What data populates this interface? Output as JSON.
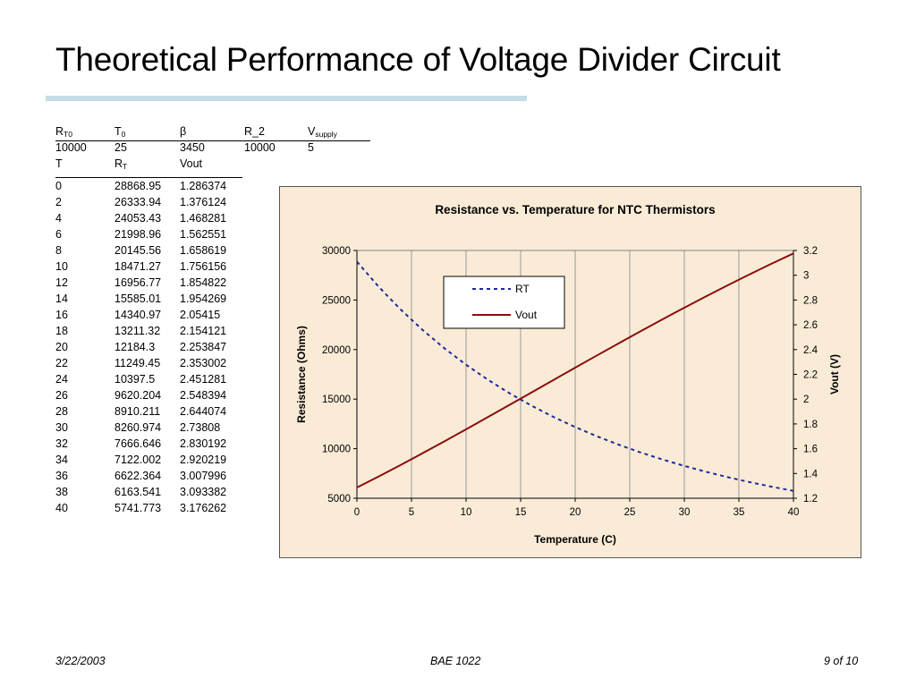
{
  "slide": {
    "title": "Theoretical Performance of Voltage Divider Circuit"
  },
  "params": {
    "headers": [
      {
        "main": "R",
        "sub": "T0"
      },
      {
        "main": "T",
        "sub": "0"
      },
      {
        "main": "β",
        "sub": ""
      },
      {
        "main": "R_2",
        "sub": ""
      },
      {
        "main": "V",
        "sub": "supply"
      }
    ],
    "values": [
      "10000",
      "25",
      "3450",
      "10000",
      "5"
    ]
  },
  "data_table": {
    "headers": [
      {
        "main": "T",
        "sub": ""
      },
      {
        "main": "R",
        "sub": "T"
      },
      {
        "main": "Vout",
        "sub": ""
      }
    ],
    "rows": [
      [
        "0",
        "28868.95",
        "1.286374"
      ],
      [
        "2",
        "26333.94",
        "1.376124"
      ],
      [
        "4",
        "24053.43",
        "1.468281"
      ],
      [
        "6",
        "21998.96",
        "1.562551"
      ],
      [
        "8",
        "20145.56",
        "1.658619"
      ],
      [
        "10",
        "18471.27",
        "1.756156"
      ],
      [
        "12",
        "16956.77",
        "1.854822"
      ],
      [
        "14",
        "15585.01",
        "1.954269"
      ],
      [
        "16",
        "14340.97",
        "2.05415"
      ],
      [
        "18",
        "13211.32",
        "2.154121"
      ],
      [
        "20",
        "12184.3",
        "2.253847"
      ],
      [
        "22",
        "11249.45",
        "2.353002"
      ],
      [
        "24",
        "10397.5",
        "2.451281"
      ],
      [
        "26",
        "9620.204",
        "2.548394"
      ],
      [
        "28",
        "8910.211",
        "2.644074"
      ],
      [
        "30",
        "8260.974",
        "2.73808"
      ],
      [
        "32",
        "7666.646",
        "2.830192"
      ],
      [
        "34",
        "7122.002",
        "2.920219"
      ],
      [
        "36",
        "6622.364",
        "3.007996"
      ],
      [
        "38",
        "6163.541",
        "3.093382"
      ],
      [
        "40",
        "5741.773",
        "3.176262"
      ]
    ]
  },
  "chart_data": {
    "type": "line",
    "title": "Resistance vs. Temperature for NTC Thermistors",
    "xlabel": "Temperature (C)",
    "ylabel": "Resistance (Ohms)",
    "y2label": "Vout (V)",
    "xlim": [
      0,
      40
    ],
    "ylim": [
      5000,
      30000
    ],
    "y2lim": [
      1.2,
      3.2
    ],
    "x_ticks": [
      "0",
      "5",
      "10",
      "15",
      "20",
      "25",
      "30",
      "35",
      "40"
    ],
    "y_ticks": [
      "5000",
      "10000",
      "15000",
      "20000",
      "25000",
      "30000"
    ],
    "y2_ticks": [
      "1.2",
      "1.4",
      "1.6",
      "1.8",
      "2",
      "2.2",
      "2.4",
      "2.6",
      "2.8",
      "3",
      "3.2"
    ],
    "x": [
      0,
      2,
      4,
      6,
      8,
      10,
      12,
      14,
      16,
      18,
      20,
      22,
      24,
      26,
      28,
      30,
      32,
      34,
      36,
      38,
      40
    ],
    "grid": "vertical",
    "legend_position": "top-center",
    "series": [
      {
        "name": "RT",
        "axis": "left",
        "color": "#1f2a9c",
        "style": "dashed",
        "values": [
          28868.95,
          26333.94,
          24053.43,
          21998.96,
          20145.56,
          18471.27,
          16956.77,
          15585.01,
          14340.97,
          13211.32,
          12184.3,
          11249.45,
          10397.5,
          9620.204,
          8910.211,
          8260.974,
          7666.646,
          7122.002,
          6622.364,
          6163.541,
          5741.773
        ]
      },
      {
        "name": "Vout",
        "axis": "right",
        "color": "#8b0d0d",
        "style": "solid",
        "values": [
          1.286374,
          1.376124,
          1.468281,
          1.562551,
          1.658619,
          1.756156,
          1.854822,
          1.954269,
          2.05415,
          2.154121,
          2.253847,
          2.353002,
          2.451281,
          2.548394,
          2.644074,
          2.73808,
          2.830192,
          2.920219,
          3.007996,
          3.093382,
          3.176262
        ]
      }
    ]
  },
  "footer": {
    "date": "3/22/2003",
    "course": "BAE 1022",
    "page": "9 of 10"
  }
}
